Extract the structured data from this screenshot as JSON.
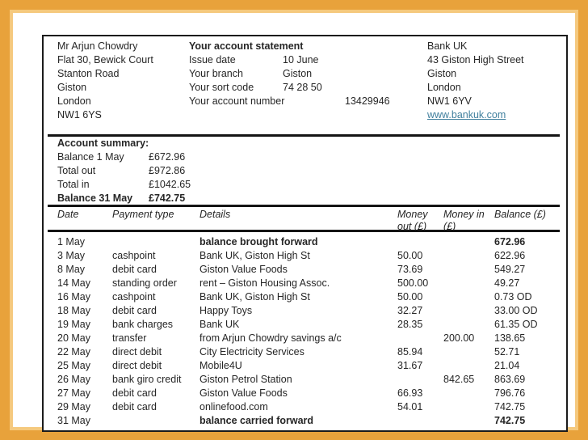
{
  "frame": {
    "border_color": "#e8a23b",
    "inner_border_color": "#f5c97e"
  },
  "header": {
    "customer": {
      "lines": [
        "Mr Arjun Chowdry",
        "Flat 30, Bewick Court",
        "Stanton Road",
        "Giston",
        "London",
        "NW1 6YS"
      ]
    },
    "statement": {
      "title": "Your account statement",
      "fields": [
        {
          "label": "Issue date",
          "value": "10 June"
        },
        {
          "label": "Your branch",
          "value": "Giston"
        },
        {
          "label": "Your sort code",
          "value": "74 28 50"
        },
        {
          "label": "Your account number",
          "value": "13429946"
        }
      ]
    },
    "bank": {
      "lines": [
        "Bank UK",
        "43 Giston High Street",
        "Giston",
        "London",
        "NW1 6YV"
      ],
      "website": "www.bankuk.com",
      "link_color": "#41809e"
    }
  },
  "summary": {
    "title": "Account summary:",
    "rows": [
      {
        "label": "Balance 1 May",
        "value": "£672.96"
      },
      {
        "label": "Total out",
        "value": "£972.86"
      },
      {
        "label": "Total in",
        "value": "£1042.65"
      },
      {
        "label": "Balance 31 May",
        "value": "£742.75"
      }
    ]
  },
  "table": {
    "headers": {
      "date": "Date",
      "payment_type": "Payment type",
      "details": "Details",
      "money_out": "Money out (£)",
      "money_in": "Money in (£)",
      "balance": "Balance (£)"
    },
    "rows": [
      {
        "date": "1 May",
        "payment_type": "",
        "details": "balance brought forward",
        "money_out": "",
        "money_in": "",
        "balance": "672.96"
      },
      {
        "date": "3 May",
        "payment_type": "cashpoint",
        "details": "Bank UK, Giston High St",
        "money_out": "50.00",
        "money_in": "",
        "balance": "622.96"
      },
      {
        "date": "8 May",
        "payment_type": "debit card",
        "details": "Giston Value Foods",
        "money_out": "73.69",
        "money_in": "",
        "balance": "549.27"
      },
      {
        "date": "14 May",
        "payment_type": "standing order",
        "details": "rent – Giston Housing Assoc.",
        "money_out": "500.00",
        "money_in": "",
        "balance": "49.27"
      },
      {
        "date": "16 May",
        "payment_type": "cashpoint",
        "details": "Bank UK, Giston High St",
        "money_out": "50.00",
        "money_in": "",
        "balance": "0.73 OD"
      },
      {
        "date": "18 May",
        "payment_type": "debit card",
        "details": "Happy Toys",
        "money_out": "32.27",
        "money_in": "",
        "balance": "33.00 OD"
      },
      {
        "date": "19 May",
        "payment_type": "bank charges",
        "details": "Bank UK",
        "money_out": "28.35",
        "money_in": "",
        "balance": "61.35 OD"
      },
      {
        "date": "20 May",
        "payment_type": "transfer",
        "details": "from Arjun Chowdry savings a/c",
        "money_out": "",
        "money_in": "200.00",
        "balance": "138.65"
      },
      {
        "date": "22 May",
        "payment_type": "direct debit",
        "details": "City Electricity Services",
        "money_out": "85.94",
        "money_in": "",
        "balance": "52.71"
      },
      {
        "date": "25 May",
        "payment_type": "direct debit",
        "details": "Mobile4U",
        "money_out": "31.67",
        "money_in": "",
        "balance": "21.04"
      },
      {
        "date": "26 May",
        "payment_type": "bank giro credit",
        "details": "Giston Petrol Station",
        "money_out": "",
        "money_in": "842.65",
        "balance": "863.69"
      },
      {
        "date": "27 May",
        "payment_type": "debit card",
        "details": "Giston Value Foods",
        "money_out": "66.93",
        "money_in": "",
        "balance": "796.76"
      },
      {
        "date": "29 May",
        "payment_type": "debit card",
        "details": "onlinefood.com",
        "money_out": "54.01",
        "money_in": "",
        "balance": "742.75"
      },
      {
        "date": "31 May",
        "payment_type": "",
        "details": "balance carried forward",
        "money_out": "",
        "money_in": "",
        "balance": "742.75"
      }
    ]
  }
}
